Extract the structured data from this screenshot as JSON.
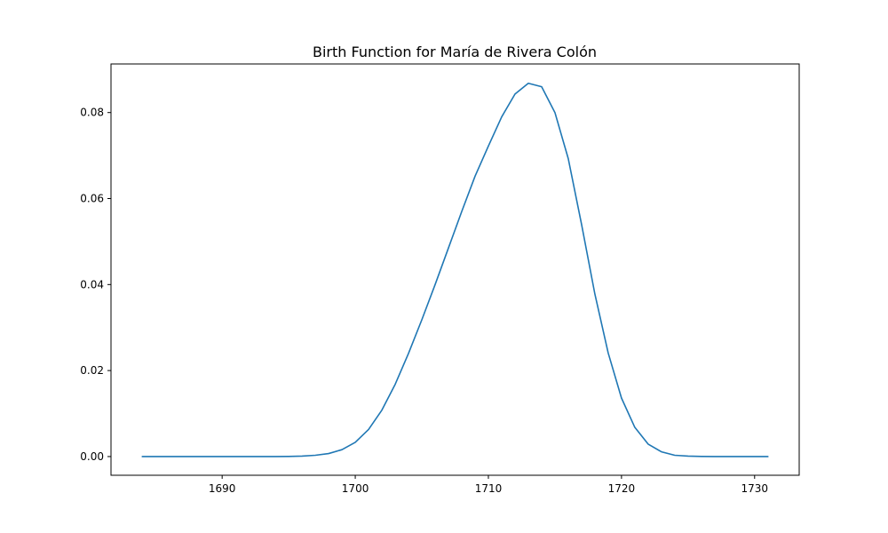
{
  "chart_data": {
    "type": "line",
    "title": "Birth Function for María de Rivera Colón",
    "xlabel": "",
    "ylabel": "",
    "xlim": [
      1681.65,
      1733.35
    ],
    "ylim": [
      -0.00435,
      0.0913
    ],
    "xticks": [
      1690,
      1700,
      1710,
      1720,
      1730
    ],
    "yticks": [
      0.0,
      0.02,
      0.04,
      0.06,
      0.08
    ],
    "ytick_labels": [
      "0.00",
      "0.02",
      "0.04",
      "0.06",
      "0.08"
    ],
    "grid": false,
    "series": [
      {
        "color": "#1f77b4",
        "x": [
          1684,
          1685,
          1686,
          1687,
          1688,
          1689,
          1690,
          1691,
          1692,
          1693,
          1694,
          1695,
          1696,
          1697,
          1698,
          1699,
          1700,
          1701,
          1702,
          1703,
          1704,
          1705,
          1706,
          1707,
          1708,
          1709,
          1710,
          1711,
          1712,
          1713,
          1714,
          1715,
          1716,
          1717,
          1718,
          1719,
          1720,
          1721,
          1722,
          1723,
          1724,
          1725,
          1726,
          1727,
          1728,
          1729,
          1730,
          1731
        ],
        "y": [
          0,
          0,
          0,
          0,
          0,
          0,
          0,
          0,
          0,
          0,
          0,
          2e-05,
          0.0001,
          0.0003,
          0.0007,
          0.0016,
          0.0033,
          0.0063,
          0.0108,
          0.0168,
          0.024,
          0.0318,
          0.04,
          0.0485,
          0.057,
          0.0652,
          0.0722,
          0.079,
          0.0843,
          0.0868,
          0.086,
          0.08,
          0.0693,
          0.054,
          0.0378,
          0.0241,
          0.0136,
          0.0068,
          0.0029,
          0.0011,
          0.0003,
          0.0001,
          2e-05,
          0,
          0,
          0,
          0,
          0
        ]
      }
    ]
  }
}
